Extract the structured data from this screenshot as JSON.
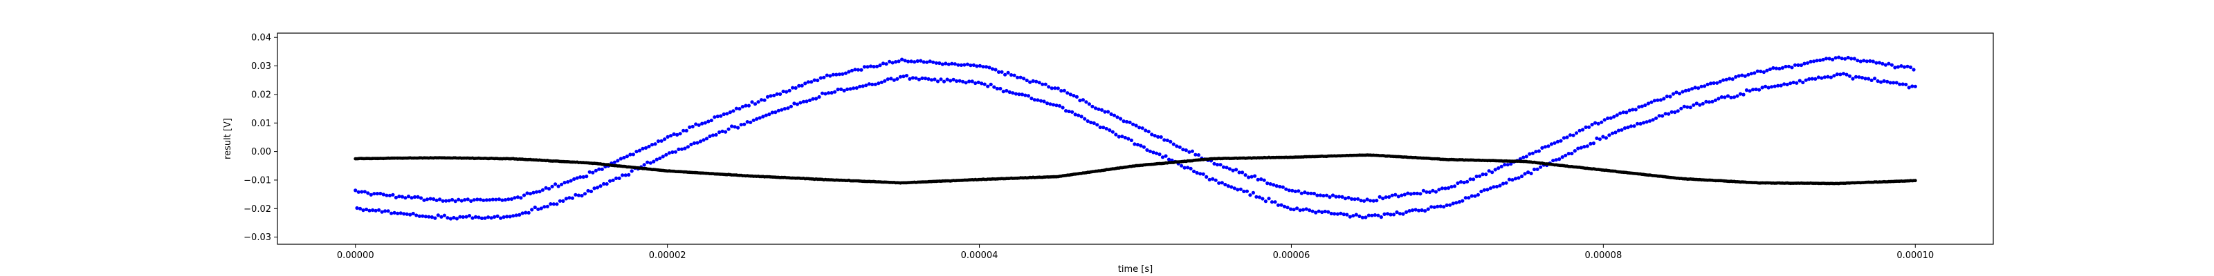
{
  "chart_data": {
    "type": "scatter",
    "title": "",
    "xlabel": "time [s]",
    "ylabel": "result [V]",
    "xlim": [
      -5e-06,
      0.000105
    ],
    "ylim": [
      -0.0325,
      0.0415
    ],
    "grid": false,
    "x_ticks": [
      0,
      2e-05,
      4e-05,
      6e-05,
      8e-05,
      0.0001
    ],
    "x_tick_labels": [
      "0.00000",
      "0.00002",
      "0.00004",
      "0.00006",
      "0.00008",
      "0.00010"
    ],
    "y_ticks": [
      0.04,
      0.03,
      0.02,
      0.01,
      0.0,
      -0.01,
      -0.02,
      -0.03
    ],
    "y_tick_labels": [
      "0.04",
      "0.03",
      "0.02",
      "0.01",
      "0.00",
      "−0.01",
      "−0.02",
      "−0.03"
    ],
    "series": [
      {
        "color": "#0000ff",
        "x": [
          0,
          5e-06,
          1e-05,
          1.5e-05,
          2e-05,
          2.5e-05,
          3e-05,
          3.5e-05,
          4e-05,
          4.5e-05,
          5e-05,
          5.5e-05,
          6e-05,
          6.5e-05,
          7e-05,
          7.5e-05,
          8e-05,
          8.5e-05,
          9e-05,
          9.5e-05,
          0.0001
        ],
        "y": [
          -0.017,
          -0.02,
          -0.02,
          -0.011,
          0.002,
          0.013,
          0.023,
          0.029,
          0.027,
          0.019,
          0.006,
          -0.007,
          -0.017,
          -0.02,
          -0.016,
          -0.005,
          0.008,
          0.018,
          0.025,
          0.03,
          0.026
        ]
      },
      {
        "color": "#000000",
        "x": [
          0,
          5e-06,
          1e-05,
          1.5e-05,
          2e-05,
          2.5e-05,
          3e-05,
          3.5e-05,
          4e-05,
          4.5e-05,
          5e-05,
          5.5e-05,
          6e-05,
          6.5e-05,
          7e-05,
          7.5e-05,
          8e-05,
          8.5e-05,
          9e-05,
          9.5e-05,
          0.0001
        ],
        "y": [
          -0.0025,
          -0.0022,
          -0.0025,
          -0.004,
          -0.0068,
          -0.0085,
          -0.0098,
          -0.011,
          -0.0098,
          -0.0088,
          -0.005,
          -0.0025,
          -0.002,
          -0.0012,
          -0.0028,
          -0.0035,
          -0.0065,
          -0.0095,
          -0.011,
          -0.0112,
          -0.0102
        ]
      }
    ]
  }
}
